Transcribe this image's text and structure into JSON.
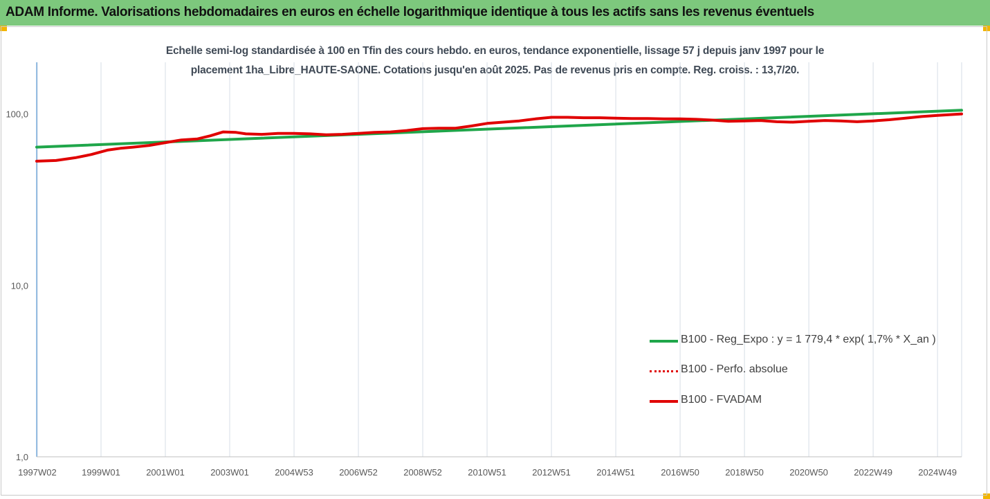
{
  "header": {
    "title": "ADAM Informe. Valorisations hebdomadaires en euros en échelle logarithmique identique à tous les actifs sans les revenus éventuels"
  },
  "chart_data": {
    "type": "line",
    "title_lines": [
      "Echelle semi-log standardisée à 100 en Tfin des cours hebdo. en euros, tendance exponentielle, lissage 57 j depuis janv 1997 pour le",
      "placement 1ha_Libre_HAUTE-SAONE. Cotations jusqu'en août 2025. Pas de revenus pris en compte. Reg. croiss. : 13,7/20."
    ],
    "y_scale": "log",
    "ylim": [
      1,
      200
    ],
    "y_ticks": [
      {
        "value": 1,
        "label": "1,0"
      },
      {
        "value": 10,
        "label": "10,0"
      },
      {
        "value": 100,
        "label": "100,0"
      }
    ],
    "xlim": [
      1997.0,
      2025.75
    ],
    "x_ticks": [
      {
        "value": 1997.02,
        "label": "1997W02"
      },
      {
        "value": 1999.0,
        "label": "1999W01"
      },
      {
        "value": 2001.0,
        "label": "2001W01"
      },
      {
        "value": 2003.0,
        "label": "2003W01"
      },
      {
        "value": 2005.0,
        "label": "2004W53"
      },
      {
        "value": 2007.0,
        "label": "2006W52"
      },
      {
        "value": 2009.0,
        "label": "2008W52"
      },
      {
        "value": 2011.0,
        "label": "2010W51"
      },
      {
        "value": 2013.0,
        "label": "2012W51"
      },
      {
        "value": 2015.0,
        "label": "2014W51"
      },
      {
        "value": 2017.0,
        "label": "2016W50"
      },
      {
        "value": 2019.0,
        "label": "2018W50"
      },
      {
        "value": 2021.0,
        "label": "2020W50"
      },
      {
        "value": 2023.0,
        "label": "2022W49"
      },
      {
        "value": 2025.0,
        "label": "2024W49"
      }
    ],
    "grid": "vertical",
    "legend_position": "bottom-right",
    "series": [
      {
        "name": "B100 - Reg_Expo : y = 1 779,4 * exp( 1,7% *  X_an )",
        "color": "#1fa64a",
        "style": "solid",
        "x": [
          1997.0,
          2025.75
        ],
        "y": [
          64,
          105
        ]
      },
      {
        "name": "B100 - Perfo. absolue",
        "color": "#e00000",
        "style": "dotted",
        "x": [],
        "y": []
      },
      {
        "name": "B100 - FVADAM",
        "color": "#e00000",
        "style": "solid",
        "x": [
          1997.0,
          1997.6,
          1998.2,
          1998.7,
          1999.2,
          1999.6,
          2000.0,
          2000.5,
          2001.0,
          2001.5,
          2002.0,
          2002.4,
          2002.8,
          2003.2,
          2003.5,
          2004.0,
          2004.5,
          2005.0,
          2005.5,
          2006.0,
          2006.5,
          2007.0,
          2007.5,
          2008.0,
          2008.5,
          2009.0,
          2009.5,
          2010.0,
          2010.5,
          2011.0,
          2011.5,
          2012.0,
          2012.5,
          2013.0,
          2013.5,
          2014.0,
          2014.5,
          2015.0,
          2015.5,
          2016.0,
          2016.5,
          2017.0,
          2017.5,
          2018.0,
          2018.5,
          2019.0,
          2019.5,
          2020.0,
          2020.5,
          2021.0,
          2021.5,
          2022.0,
          2022.5,
          2023.0,
          2023.5,
          2024.0,
          2024.5,
          2025.0,
          2025.75
        ],
        "y": [
          53,
          53.5,
          55.5,
          58,
          61.5,
          63,
          64,
          65.5,
          68,
          70.5,
          71.5,
          74.5,
          78.5,
          78,
          76.5,
          76,
          77,
          77,
          76.5,
          75.5,
          76,
          77,
          78,
          78.5,
          80,
          82,
          82.5,
          82.5,
          85,
          88,
          89.5,
          91,
          93.5,
          95.5,
          95.5,
          95,
          95,
          94.5,
          94,
          94,
          93.5,
          93.5,
          93,
          92,
          90.5,
          91,
          91.5,
          90,
          89.5,
          90.5,
          91.5,
          91,
          90,
          91,
          92.5,
          94.5,
          96.5,
          98,
          100
        ]
      }
    ]
  }
}
